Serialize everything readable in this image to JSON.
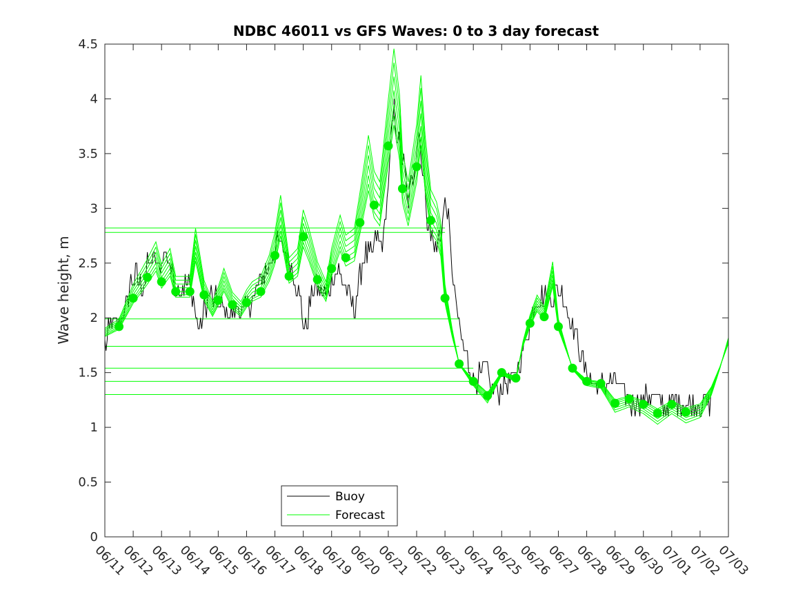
{
  "chart_data": {
    "type": "line",
    "title": "NDBC 46011 vs GFS Waves: 0 to 3 day forecast",
    "xlabel": "",
    "ylabel": "Wave height, m",
    "ylim": [
      0,
      4.5
    ],
    "yticks": [
      "0",
      "0.5",
      "1",
      "1.5",
      "2",
      "2.5",
      "3",
      "3.5",
      "4",
      "4.5"
    ],
    "xlim_days": [
      0,
      22
    ],
    "xticks": [
      "06/11",
      "06/12",
      "06/13",
      "06/14",
      "06/15",
      "06/16",
      "06/17",
      "06/18",
      "06/19",
      "06/20",
      "06/21",
      "06/22",
      "06/23",
      "06/24",
      "06/25",
      "06/26",
      "06/27",
      "06/28",
      "06/29",
      "06/30",
      "07/01",
      "07/02",
      "07/03"
    ],
    "grid": false,
    "legend": {
      "placement": "bottom-center",
      "entries": [
        {
          "name": "Buoy",
          "color": "#000000"
        },
        {
          "name": "Forecast",
          "color": "#00ff00"
        }
      ]
    },
    "colors": {
      "buoy": "#000000",
      "forecast": "#00ff00",
      "forecast_points": "#00ee00"
    },
    "buoy_anchors": [
      [
        0.0,
        1.75
      ],
      [
        0.25,
        1.95
      ],
      [
        0.5,
        1.95
      ],
      [
        0.7,
        2.05
      ],
      [
        0.9,
        2.3
      ],
      [
        1.1,
        2.4
      ],
      [
        1.3,
        2.25
      ],
      [
        1.5,
        2.45
      ],
      [
        1.7,
        2.55
      ],
      [
        1.9,
        2.45
      ],
      [
        2.1,
        2.6
      ],
      [
        2.3,
        2.5
      ],
      [
        2.5,
        2.3
      ],
      [
        2.7,
        2.25
      ],
      [
        2.9,
        2.35
      ],
      [
        3.1,
        2.2
      ],
      [
        3.25,
        1.95
      ],
      [
        3.35,
        1.85
      ],
      [
        3.5,
        2.1
      ],
      [
        3.7,
        2.2
      ],
      [
        3.9,
        2.15
      ],
      [
        4.1,
        2.1
      ],
      [
        4.3,
        2.05
      ],
      [
        4.5,
        2.0
      ],
      [
        4.7,
        2.1
      ],
      [
        4.9,
        2.05
      ],
      [
        5.1,
        2.15
      ],
      [
        5.3,
        2.2
      ],
      [
        5.5,
        2.35
      ],
      [
        5.7,
        2.45
      ],
      [
        5.9,
        2.55
      ],
      [
        6.1,
        2.7
      ],
      [
        6.3,
        2.65
      ],
      [
        6.5,
        2.5
      ],
      [
        6.7,
        2.35
      ],
      [
        6.9,
        2.15
      ],
      [
        7.0,
        1.95
      ],
      [
        7.1,
        1.85
      ],
      [
        7.2,
        2.1
      ],
      [
        7.4,
        2.3
      ],
      [
        7.6,
        2.25
      ],
      [
        7.8,
        2.2
      ],
      [
        8.0,
        2.35
      ],
      [
        8.2,
        2.45
      ],
      [
        8.4,
        2.35
      ],
      [
        8.6,
        2.2
      ],
      [
        8.8,
        2.05
      ],
      [
        9.0,
        2.4
      ],
      [
        9.2,
        2.6
      ],
      [
        9.4,
        2.55
      ],
      [
        9.6,
        2.75
      ],
      [
        9.8,
        2.65
      ],
      [
        10.0,
        3.2
      ],
      [
        10.1,
        3.6
      ],
      [
        10.2,
        3.9
      ],
      [
        10.3,
        3.7
      ],
      [
        10.4,
        3.55
      ],
      [
        10.5,
        3.45
      ],
      [
        10.6,
        3.3
      ],
      [
        10.7,
        3.0
      ],
      [
        10.8,
        3.2
      ],
      [
        10.9,
        3.3
      ],
      [
        11.0,
        3.55
      ],
      [
        11.1,
        3.7
      ],
      [
        11.2,
        3.4
      ],
      [
        11.3,
        3.1
      ],
      [
        11.4,
        2.9
      ],
      [
        11.5,
        2.75
      ],
      [
        11.6,
        2.7
      ],
      [
        11.7,
        2.65
      ],
      [
        11.8,
        2.75
      ],
      [
        11.9,
        2.85
      ],
      [
        12.0,
        3.05
      ],
      [
        12.1,
        2.95
      ],
      [
        12.2,
        2.6
      ],
      [
        12.3,
        2.3
      ],
      [
        12.4,
        2.1
      ],
      [
        12.55,
        1.85
      ],
      [
        12.7,
        1.7
      ],
      [
        12.85,
        1.55
      ],
      [
        13.0,
        1.45
      ],
      [
        13.2,
        1.45
      ],
      [
        13.4,
        1.55
      ],
      [
        13.6,
        1.4
      ],
      [
        13.8,
        1.35
      ],
      [
        14.0,
        1.35
      ],
      [
        14.2,
        1.4
      ],
      [
        14.4,
        1.45
      ],
      [
        14.6,
        1.55
      ],
      [
        14.8,
        1.75
      ],
      [
        15.0,
        1.95
      ],
      [
        15.2,
        2.15
      ],
      [
        15.4,
        2.2
      ],
      [
        15.6,
        2.15
      ],
      [
        15.8,
        2.2
      ],
      [
        16.0,
        2.25
      ],
      [
        16.2,
        2.2
      ],
      [
        16.4,
        2.0
      ],
      [
        16.6,
        1.85
      ],
      [
        16.8,
        1.65
      ],
      [
        17.0,
        1.5
      ],
      [
        17.2,
        1.4
      ],
      [
        17.4,
        1.35
      ],
      [
        17.6,
        1.4
      ],
      [
        17.8,
        1.45
      ],
      [
        18.0,
        1.4
      ],
      [
        18.2,
        1.35
      ],
      [
        18.4,
        1.25
      ],
      [
        18.6,
        1.2
      ],
      [
        18.8,
        1.25
      ],
      [
        19.0,
        1.25
      ],
      [
        19.2,
        1.3
      ],
      [
        19.4,
        1.25
      ],
      [
        19.6,
        1.2
      ],
      [
        19.8,
        1.2
      ],
      [
        20.0,
        1.2
      ],
      [
        20.2,
        1.25
      ],
      [
        20.4,
        1.25
      ],
      [
        20.6,
        1.2
      ],
      [
        20.8,
        1.2
      ],
      [
        21.0,
        1.2
      ],
      [
        21.2,
        1.25
      ],
      [
        21.4,
        1.2
      ]
    ],
    "forecast_points": [
      [
        0.5,
        1.92
      ],
      [
        1.0,
        2.18
      ],
      [
        1.5,
        2.37
      ],
      [
        2.0,
        2.33
      ],
      [
        2.5,
        2.24
      ],
      [
        3.0,
        2.24
      ],
      [
        3.5,
        2.21
      ],
      [
        4.0,
        2.16
      ],
      [
        4.5,
        2.12
      ],
      [
        5.0,
        2.14
      ],
      [
        5.5,
        2.24
      ],
      [
        6.0,
        2.57
      ],
      [
        6.5,
        2.38
      ],
      [
        7.0,
        2.74
      ],
      [
        7.5,
        2.35
      ],
      [
        8.0,
        2.45
      ],
      [
        8.5,
        2.55
      ],
      [
        9.0,
        2.87
      ],
      [
        9.5,
        3.03
      ],
      [
        10.0,
        3.57
      ],
      [
        10.5,
        3.18
      ],
      [
        11.0,
        3.38
      ],
      [
        11.5,
        2.89
      ],
      [
        12.0,
        2.18
      ],
      [
        12.5,
        1.58
      ],
      [
        13.0,
        1.42
      ],
      [
        13.5,
        1.29
      ],
      [
        14.0,
        1.5
      ],
      [
        14.5,
        1.45
      ],
      [
        15.0,
        1.95
      ],
      [
        15.5,
        2.01
      ],
      [
        16.0,
        1.92
      ],
      [
        16.5,
        1.54
      ],
      [
        17.0,
        1.42
      ],
      [
        17.5,
        1.4
      ],
      [
        18.0,
        1.22
      ],
      [
        18.5,
        1.26
      ],
      [
        19.0,
        1.21
      ],
      [
        19.5,
        1.13
      ],
      [
        20.0,
        1.21
      ],
      [
        20.5,
        1.14
      ]
    ],
    "forecast_anchors": [
      [
        0.0,
        1.85
      ],
      [
        0.5,
        1.92
      ],
      [
        1.0,
        2.18
      ],
      [
        1.5,
        2.37
      ],
      [
        1.8,
        2.5
      ],
      [
        2.0,
        2.33
      ],
      [
        2.3,
        2.45
      ],
      [
        2.5,
        2.24
      ],
      [
        3.0,
        2.24
      ],
      [
        3.2,
        2.6
      ],
      [
        3.5,
        2.21
      ],
      [
        3.8,
        2.05
      ],
      [
        4.0,
        2.16
      ],
      [
        4.2,
        2.3
      ],
      [
        4.5,
        2.12
      ],
      [
        4.8,
        2.05
      ],
      [
        5.0,
        2.14
      ],
      [
        5.2,
        2.2
      ],
      [
        5.5,
        2.24
      ],
      [
        5.8,
        2.4
      ],
      [
        6.0,
        2.57
      ],
      [
        6.2,
        2.85
      ],
      [
        6.5,
        2.38
      ],
      [
        6.8,
        2.45
      ],
      [
        7.0,
        2.74
      ],
      [
        7.2,
        2.6
      ],
      [
        7.5,
        2.35
      ],
      [
        7.8,
        2.2
      ],
      [
        8.0,
        2.45
      ],
      [
        8.3,
        2.7
      ],
      [
        8.5,
        2.55
      ],
      [
        8.8,
        2.6
      ],
      [
        9.0,
        2.87
      ],
      [
        9.3,
        3.3
      ],
      [
        9.5,
        3.03
      ],
      [
        9.7,
        2.95
      ],
      [
        10.0,
        3.57
      ],
      [
        10.2,
        3.95
      ],
      [
        10.4,
        3.6
      ],
      [
        10.5,
        3.18
      ],
      [
        10.7,
        2.95
      ],
      [
        11.0,
        3.38
      ],
      [
        11.15,
        3.75
      ],
      [
        11.3,
        3.3
      ],
      [
        11.5,
        2.89
      ],
      [
        11.7,
        2.8
      ],
      [
        11.85,
        2.65
      ],
      [
        12.0,
        2.18
      ],
      [
        12.25,
        1.85
      ],
      [
        12.5,
        1.58
      ],
      [
        13.0,
        1.42
      ],
      [
        13.5,
        1.29
      ],
      [
        14.0,
        1.5
      ],
      [
        14.5,
        1.45
      ],
      [
        14.75,
        1.75
      ],
      [
        15.0,
        1.95
      ],
      [
        15.25,
        2.1
      ],
      [
        15.5,
        2.01
      ],
      [
        15.8,
        2.35
      ],
      [
        16.0,
        1.92
      ],
      [
        16.5,
        1.54
      ],
      [
        17.0,
        1.42
      ],
      [
        17.5,
        1.4
      ],
      [
        18.0,
        1.22
      ],
      [
        18.5,
        1.26
      ],
      [
        19.0,
        1.21
      ],
      [
        19.5,
        1.13
      ],
      [
        20.0,
        1.21
      ],
      [
        20.5,
        1.14
      ],
      [
        21.0,
        1.18
      ],
      [
        21.4,
        1.35
      ],
      [
        21.7,
        1.55
      ],
      [
        22.0,
        1.78
      ]
    ],
    "forecast_lead_offsets": [
      0,
      0.06,
      -0.05,
      0.12,
      -0.09,
      0.18,
      0.24
    ],
    "horizontal_lines": [
      {
        "y": 2.82,
        "x_end_days": 12.0
      },
      {
        "y": 2.78,
        "x_end_days": 12.0
      },
      {
        "y": 1.99,
        "x_end_days": 12.5
      },
      {
        "y": 1.74,
        "x_end_days": 12.5
      },
      {
        "y": 1.54,
        "x_end_days": 13.0
      },
      {
        "y": 1.42,
        "x_end_days": 13.0
      },
      {
        "y": 1.3,
        "x_end_days": 13.5
      }
    ]
  }
}
